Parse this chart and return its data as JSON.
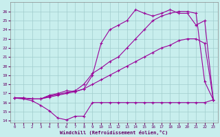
{
  "xlabel": "Windchill (Refroidissement éolien,°C)",
  "xlim": [
    -0.5,
    23.5
  ],
  "ylim": [
    13.8,
    27
  ],
  "yticks": [
    14,
    15,
    16,
    17,
    18,
    19,
    20,
    21,
    22,
    23,
    24,
    25,
    26
  ],
  "xticks": [
    0,
    1,
    2,
    3,
    4,
    5,
    6,
    7,
    8,
    9,
    10,
    11,
    12,
    13,
    14,
    15,
    16,
    17,
    18,
    19,
    20,
    21,
    22,
    23
  ],
  "background_color": "#c8eeed",
  "grid_color": "#a0cccc",
  "line_color": "#990099",
  "lines": [
    {
      "x": [
        0,
        1,
        2,
        3,
        4,
        5,
        6,
        7,
        8,
        9,
        10,
        11,
        12,
        13,
        14,
        15,
        16,
        17,
        18,
        19,
        20,
        21,
        22,
        23
      ],
      "y": [
        16.5,
        16.4,
        16.2,
        15.7,
        15.1,
        14.3,
        14.1,
        14.5,
        14.5,
        16.0,
        16.0,
        16.0,
        16.0,
        16.0,
        16.0,
        16.0,
        16.0,
        16.0,
        16.0,
        16.0,
        16.0,
        16.0,
        16.0,
        16.3
      ]
    },
    {
      "x": [
        0,
        1,
        2,
        3,
        4,
        5,
        6,
        7,
        8,
        9,
        10,
        11,
        12,
        13,
        14,
        15,
        16,
        17,
        18,
        19,
        20,
        21,
        22,
        23
      ],
      "y": [
        16.5,
        16.5,
        16.4,
        16.4,
        16.6,
        16.8,
        17.0,
        17.2,
        17.5,
        18.0,
        18.5,
        19.0,
        19.5,
        20.0,
        20.5,
        21.0,
        21.5,
        22.0,
        22.3,
        22.8,
        23.0,
        23.0,
        22.5,
        16.3
      ]
    },
    {
      "x": [
        0,
        1,
        2,
        3,
        4,
        5,
        6,
        7,
        8,
        9,
        10,
        11,
        12,
        13,
        14,
        15,
        16,
        17,
        18,
        19,
        20,
        21,
        22,
        23
      ],
      "y": [
        16.5,
        16.5,
        16.4,
        16.4,
        16.8,
        17.0,
        17.3,
        17.2,
        17.5,
        19.0,
        22.5,
        24.0,
        24.5,
        25.0,
        26.2,
        25.8,
        25.5,
        25.8,
        26.2,
        25.8,
        25.8,
        24.5,
        25.0,
        16.3
      ]
    },
    {
      "x": [
        0,
        1,
        2,
        3,
        4,
        5,
        6,
        7,
        8,
        9,
        10,
        11,
        12,
        13,
        14,
        15,
        16,
        17,
        18,
        19,
        20,
        21,
        22,
        23
      ],
      "y": [
        16.5,
        16.5,
        16.4,
        16.4,
        16.7,
        16.9,
        17.1,
        17.3,
        18.0,
        19.2,
        19.8,
        20.5,
        21.0,
        22.0,
        23.0,
        24.0,
        25.0,
        25.5,
        25.8,
        26.0,
        26.0,
        25.8,
        18.3,
        16.3
      ]
    }
  ]
}
